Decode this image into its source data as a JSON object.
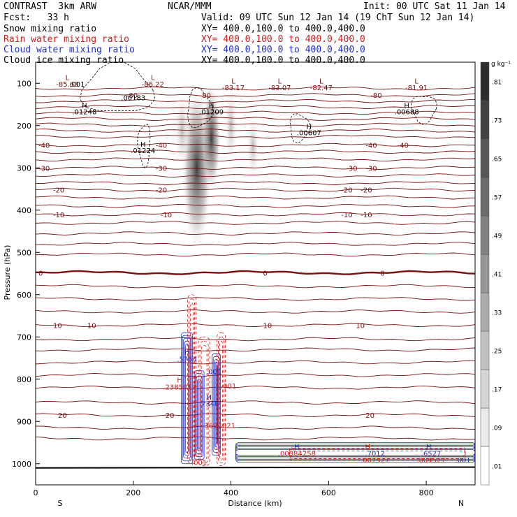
{
  "header": {
    "model": "CONTRAST  3km ARW",
    "center": "NCAR/MMM",
    "init": "Init: 00 UTC Sat 11 Jan 14",
    "fcst": "Fcst:   33 h",
    "valid": "Valid: 09 UTC Sun 12 Jan 14 (19 ChT Sun 12 Jan 14)",
    "fields": [
      {
        "name": "Snow mixing ratio",
        "xy": "XY= 400.0,100.0 to 400.0,400.0",
        "color": "#000000"
      },
      {
        "name": "Rain water mixing ratio",
        "xy": "XY= 400.0,100.0 to 400.0,400.0",
        "color": "#cc1f1f"
      },
      {
        "name": "Cloud water mixing ratio",
        "xy": "XY= 400.0,100.0 to 400.0,400.0",
        "color": "#1f2fd0"
      },
      {
        "name": "Cloud ice mixing ratio",
        "xy": "XY= 400.0,100.0 to 400.0,400.0",
        "color": "#000000"
      }
    ]
  },
  "chart_data": {
    "type": "contour",
    "xlabel": "Distance (km)",
    "ylabel": "Pressure (hPa)",
    "x_ticks": [
      "0",
      "200",
      "400",
      "600",
      "800"
    ],
    "y_ticks": [
      "100",
      "200",
      "300",
      "400",
      "500",
      "600",
      "700",
      "800",
      "900",
      "1000"
    ],
    "xlim": [
      0,
      900
    ],
    "ylim": [
      1050,
      50
    ],
    "left_end_label": "S",
    "right_end_label": "N",
    "colorbar": {
      "unit": "g kg⁻¹",
      "ticks": [
        ".01",
        ".09",
        ".17",
        ".25",
        ".33",
        ".41",
        ".49",
        ".57",
        ".65",
        ".73",
        ".81"
      ]
    },
    "temperature_contours": {
      "color": "#7a1010",
      "lines": [
        {
          "value": "-80",
          "p": 128,
          "label_x": [
            180,
            330,
            680
          ]
        },
        {
          "value": "-40",
          "p": 246,
          "label_x": [
            0,
            240,
            670,
            735
          ]
        },
        {
          "value": "-30",
          "p": 300,
          "label_x": [
            0,
            240,
            630,
            670
          ]
        },
        {
          "value": "-20",
          "p": 352,
          "label_x": [
            30,
            240,
            620,
            660
          ]
        },
        {
          "value": "-10",
          "p": 410,
          "label_x": [
            30,
            250,
            620,
            660
          ]
        },
        {
          "value": "0",
          "p": 548,
          "label_x": [
            0,
            460,
            700
          ]
        },
        {
          "value": "10",
          "p": 672,
          "label_x": [
            30,
            100,
            460,
            650
          ]
        },
        {
          "value": "20",
          "p": 885,
          "label_x": [
            40,
            260,
            670
          ]
        }
      ]
    },
    "labels": [
      {
        "text": "L",
        "x": 65,
        "p": 92,
        "color": "#7a1010"
      },
      {
        "text": "-85.60",
        "x": 65,
        "p": 108,
        "color": "#7a1010"
      },
      {
        "text": ".001",
        "x": 85,
        "p": 108,
        "color": "#000000"
      },
      {
        "text": "L",
        "x": 240,
        "p": 92,
        "color": "#7a1010"
      },
      {
        "text": "-86.22",
        "x": 240,
        "p": 108,
        "color": "#7a1010"
      },
      {
        "text": "L",
        "x": 405,
        "p": 100,
        "color": "#7a1010"
      },
      {
        "text": "-83.17",
        "x": 405,
        "p": 116,
        "color": "#7a1010"
      },
      {
        "text": "L",
        "x": 500,
        "p": 100,
        "color": "#7a1010"
      },
      {
        "text": "-83.07",
        "x": 500,
        "p": 116,
        "color": "#7a1010"
      },
      {
        "text": "L",
        "x": 585,
        "p": 100,
        "color": "#7a1010"
      },
      {
        "text": "-82.47",
        "x": 585,
        "p": 116,
        "color": "#7a1010"
      },
      {
        "text": "L",
        "x": 780,
        "p": 100,
        "color": "#7a1010"
      },
      {
        "text": "-81.91",
        "x": 780,
        "p": 116,
        "color": "#7a1010"
      },
      {
        "text": ".00183",
        "x": 200,
        "p": 140,
        "color": "#000000"
      },
      {
        "text": "H",
        "x": 100,
        "p": 158,
        "color": "#000000"
      },
      {
        "text": ".01248",
        "x": 100,
        "p": 173,
        "color": "#000000"
      },
      {
        "text": "H",
        "x": 360,
        "p": 158,
        "color": "#000000"
      },
      {
        "text": ".01209",
        "x": 360,
        "p": 173,
        "color": "#000000"
      },
      {
        "text": "H",
        "x": 760,
        "p": 158,
        "color": "#000000"
      },
      {
        "text": ".00688",
        "x": 760,
        "p": 173,
        "color": "#000000"
      },
      {
        "text": "H",
        "x": 560,
        "p": 208,
        "color": "#000000"
      },
      {
        "text": ".00607",
        "x": 560,
        "p": 223,
        "color": "#000000"
      },
      {
        "text": "H",
        "x": 220,
        "p": 250,
        "color": "#000000"
      },
      {
        "text": ".01224",
        "x": 220,
        "p": 265,
        "color": "#000000"
      },
      {
        "text": "H",
        "x": 310,
        "p": 742,
        "color": "#1f2fd0"
      },
      {
        "text": ".5764",
        "x": 310,
        "p": 758,
        "color": "#1f2fd0"
      },
      {
        "text": ".001",
        "x": 365,
        "p": 788,
        "color": "#1f2fd0"
      },
      {
        "text": "H",
        "x": 295,
        "p": 808,
        "color": "#cc1f1f"
      },
      {
        "text": ".2385012",
        "x": 295,
        "p": 824,
        "color": "#cc1f1f"
      },
      {
        "text": ".001",
        "x": 395,
        "p": 822,
        "color": "#cc1f1f"
      },
      {
        "text": "H",
        "x": 355,
        "p": 848,
        "color": "#1f2fd0"
      },
      {
        "text": ".7346",
        "x": 355,
        "p": 864,
        "color": "#1f2fd0"
      },
      {
        "text": ".3694021",
        "x": 375,
        "p": 915,
        "color": "#cc1f1f"
      },
      {
        "text": "H",
        "x": 535,
        "p": 965,
        "color": "#1f2fd0"
      },
      {
        "text": ".00384258",
        "x": 535,
        "p": 981,
        "color": "#cc1f1f"
      },
      {
        "text": "H",
        "x": 680,
        "p": 965,
        "color": "#cc1f1f"
      },
      {
        "text": ".7012",
        "x": 695,
        "p": 981,
        "color": "#1f2fd0"
      },
      {
        "text": ".007527",
        "x": 695,
        "p": 997,
        "color": "#cc1f1f"
      },
      {
        "text": "H",
        "x": 805,
        "p": 965,
        "color": "#1f2fd0"
      },
      {
        "text": ".6527",
        "x": 810,
        "p": 981,
        "color": "#1f2fd0"
      },
      {
        "text": ".004527",
        "x": 810,
        "p": 997,
        "color": "#cc1f1f"
      },
      {
        "text": ".001",
        "x": 875,
        "p": 997,
        "color": "#1f2fd0"
      },
      {
        "text": ".001",
        "x": 335,
        "p": 1003,
        "color": "#cc1f1f"
      }
    ]
  }
}
